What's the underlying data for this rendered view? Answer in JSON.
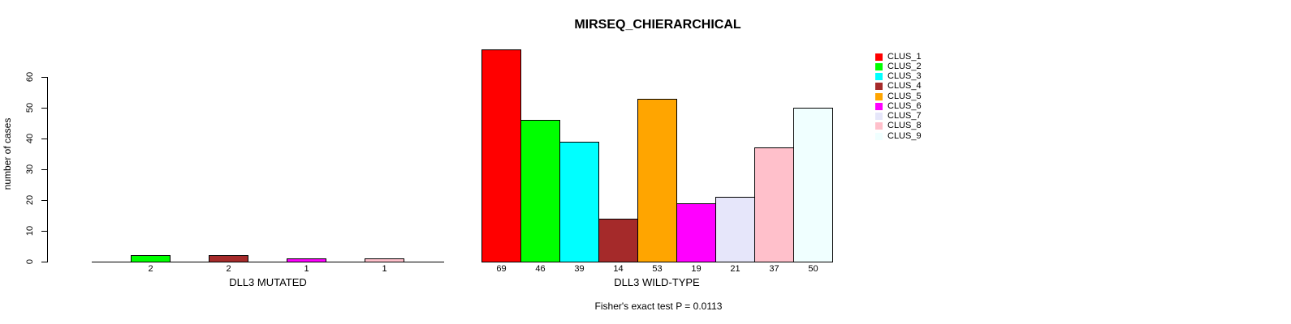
{
  "chart_data": {
    "type": "bar",
    "title": "MIRSEQ_CHIERARCHICAL",
    "ylabel": "number of cases",
    "ylim": [
      0,
      60
    ],
    "yticks": [
      0,
      10,
      20,
      30,
      40,
      50,
      60
    ],
    "categories": [
      "CLUS_1",
      "CLUS_2",
      "CLUS_3",
      "CLUS_4",
      "CLUS_5",
      "CLUS_6",
      "CLUS_7",
      "CLUS_8",
      "CLUS_9"
    ],
    "colors": [
      "#ff0000",
      "#00ff00",
      "#00ffff",
      "#a52a2a",
      "#ffa500",
      "#ff00ff",
      "#e6e6fa",
      "#ffc0cb",
      "#f0ffff"
    ],
    "series": [
      {
        "name": "DLL3 MUTATED",
        "values": [
          0,
          2,
          0,
          2,
          0,
          1,
          0,
          1,
          0
        ]
      },
      {
        "name": "DLL3 WILD-TYPE",
        "values": [
          69,
          46,
          39,
          14,
          53,
          19,
          21,
          37,
          50
        ]
      }
    ],
    "annotation": "Fisher's exact test P = 0.0113",
    "legend_position": "right",
    "grid": false
  }
}
